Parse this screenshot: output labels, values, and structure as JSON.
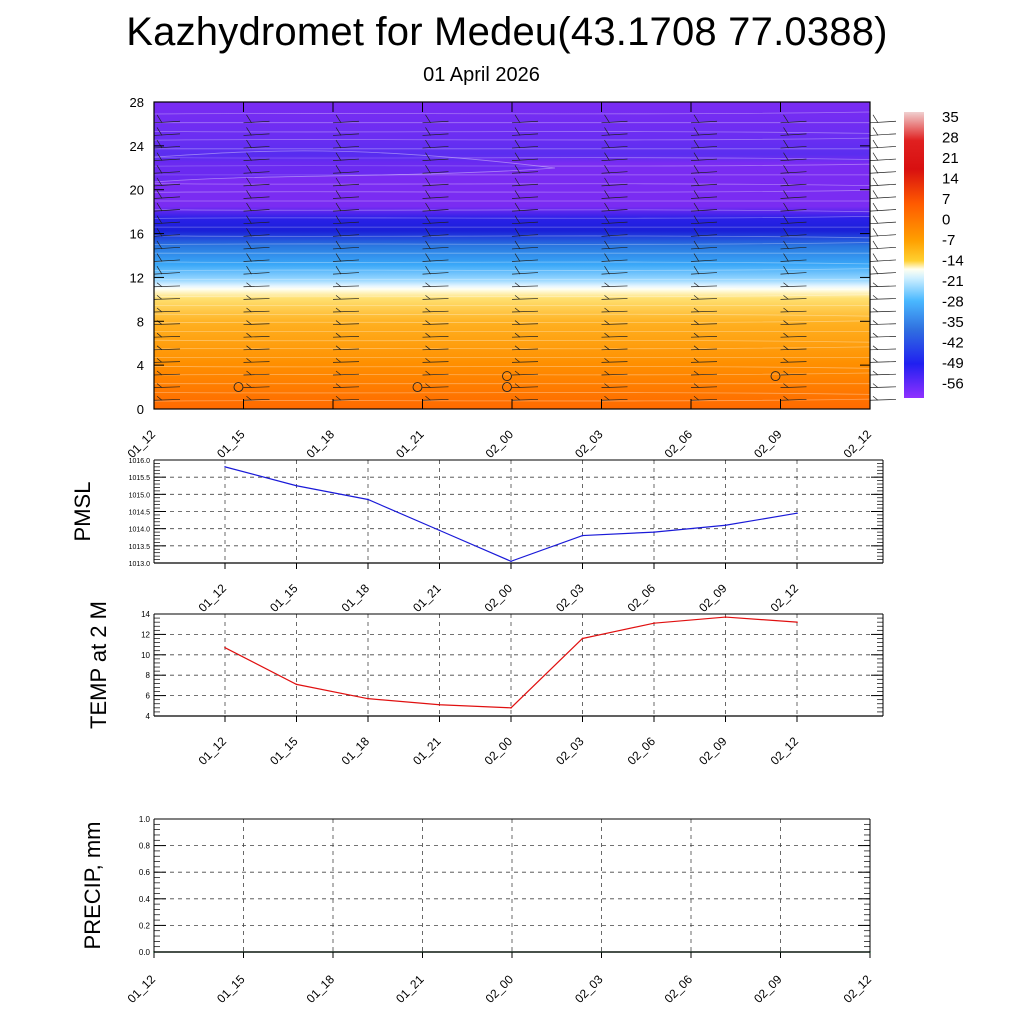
{
  "title": "Kazhydromet for Medeu(43.1708 77.0388)",
  "subtitle": "01 April 2026",
  "colors": {
    "pmsl_line": "#1a1ad8",
    "temp_line": "#e01010",
    "precip_line": "#0a6a2a",
    "grid": "#444444"
  },
  "chart_data": [
    {
      "type": "heatmap",
      "name": "cross-section",
      "x_ticks": [
        "01_12",
        "01_15",
        "01_18",
        "01_21",
        "02_00",
        "02_03",
        "02_06",
        "02_09",
        "02_12"
      ],
      "y_ticks": [
        0,
        4,
        8,
        12,
        16,
        20,
        24,
        28
      ],
      "ylim": [
        0,
        28
      ],
      "colorbar": {
        "labels": [
          "35",
          "28",
          "21",
          "14",
          "7",
          "0",
          "-7",
          "-14",
          "-21",
          "-28",
          "-35",
          "-42",
          "-49",
          "-56"
        ],
        "range": [
          -60,
          38
        ]
      },
      "temperature_profile": [
        {
          "level": 0,
          "value": 18
        },
        {
          "level": 4,
          "value": 13
        },
        {
          "level": 8,
          "value": 7
        },
        {
          "level": 10.8,
          "value": -1
        },
        {
          "level": 11.2,
          "value": -16
        },
        {
          "level": 13,
          "value": -24
        },
        {
          "level": 15,
          "value": -40
        },
        {
          "level": 16.5,
          "value": -58
        },
        {
          "level": 18,
          "value": -55
        },
        {
          "level": 20,
          "value": -53
        },
        {
          "level": 22.5,
          "value": -57
        },
        {
          "level": 24,
          "value": -52
        },
        {
          "level": 28,
          "value": -52
        }
      ],
      "wind_barb_columns": [
        "01_12",
        "01_15",
        "01_18",
        "01_21",
        "02_00",
        "02_03",
        "02_06",
        "02_09",
        "02_12"
      ],
      "calm_markers": [
        {
          "x": "01_15",
          "level": 2
        },
        {
          "x": "01_21",
          "level": 2
        },
        {
          "x": "02_00",
          "level": 2
        },
        {
          "x": "02_00",
          "level": 3
        },
        {
          "x": "02_09",
          "level": 3
        }
      ],
      "grid": false
    },
    {
      "type": "line",
      "name": "pmsl",
      "ylabel": "PMSL",
      "x": [
        "01_12",
        "01_15",
        "01_18",
        "01_21",
        "02_00",
        "02_03",
        "02_06",
        "02_09",
        "02_12"
      ],
      "values": [
        1015.8,
        1015.25,
        1014.85,
        1013.95,
        1013.05,
        1013.8,
        1013.9,
        1014.1,
        1014.45
      ],
      "ylim": [
        1013.0,
        1016.0
      ],
      "y_ticks": [
        "1013.0",
        "1013.5",
        "1014.0",
        "1014.5",
        "1015.0",
        "1015.5",
        "1016.0"
      ],
      "grid": true
    },
    {
      "type": "line",
      "name": "temp2m",
      "ylabel": "TEMP at 2 M",
      "x": [
        "01_12",
        "01_15",
        "01_18",
        "01_21",
        "02_00",
        "02_03",
        "02_06",
        "02_09",
        "02_12"
      ],
      "values": [
        10.7,
        7.1,
        5.7,
        5.1,
        4.8,
        11.6,
        13.1,
        13.7,
        13.2
      ],
      "ylim": [
        4,
        14
      ],
      "y_ticks": [
        "4",
        "6",
        "8",
        "10",
        "12",
        "14"
      ],
      "grid": true
    },
    {
      "type": "line",
      "name": "precip",
      "ylabel": "PRECIP, mm",
      "x_ticks": [
        "01_12",
        "01_15",
        "01_18",
        "01_21",
        "02_00",
        "02_03",
        "02_06",
        "02_09",
        "02_12"
      ],
      "values": [
        0,
        0,
        0,
        0,
        0,
        0,
        0,
        0,
        0
      ],
      "ylim": [
        0,
        1
      ],
      "y_ticks": [
        "0.0",
        "0.2",
        "0.4",
        "0.6",
        "0.8",
        "1.0"
      ],
      "grid": true
    }
  ]
}
